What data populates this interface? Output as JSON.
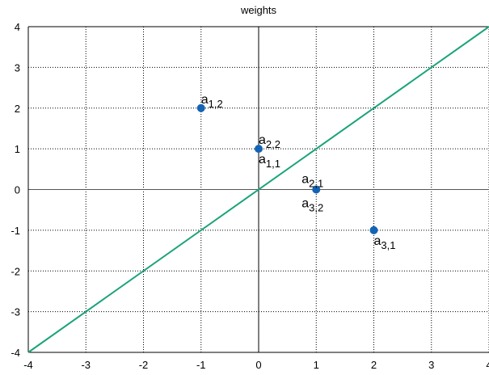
{
  "chart_data": {
    "type": "scatter",
    "title": "weights",
    "xlabel": "",
    "ylabel": "",
    "xlim": [
      -4,
      4
    ],
    "ylim": [
      -4,
      4
    ],
    "x_ticks": [
      -4,
      -3,
      -2,
      -1,
      0,
      1,
      2,
      3,
      4
    ],
    "y_ticks": [
      -4,
      -3,
      -2,
      -1,
      0,
      1,
      2,
      3,
      4
    ],
    "x_tick_labels": [
      "-4",
      "-3",
      "-2",
      "-1",
      "0",
      "1",
      "2",
      "3",
      "4"
    ],
    "y_tick_labels": [
      "-4",
      "-3",
      "-2",
      "-1",
      "0",
      "1",
      "2",
      "3",
      "4"
    ],
    "grid": true,
    "points": [
      {
        "x": -1,
        "y": 2
      },
      {
        "x": 0,
        "y": 1
      },
      {
        "x": 1,
        "y": 0
      },
      {
        "x": 2,
        "y": -1
      }
    ],
    "point_labels": [
      {
        "base": "a",
        "sub": "1,2",
        "x": -1,
        "y": 2,
        "placement": "above-right"
      },
      {
        "base": "a",
        "sub": "2,2",
        "x": 0,
        "y": 1,
        "placement": "above-right"
      },
      {
        "base": "a",
        "sub": "1,1",
        "x": 0,
        "y": 1,
        "placement": "below-right"
      },
      {
        "base": "a",
        "sub": "2,1",
        "x": 1,
        "y": 0,
        "placement": "above-left"
      },
      {
        "base": "a",
        "sub": "3,2",
        "x": 1,
        "y": 0,
        "placement": "below-left"
      },
      {
        "base": "a",
        "sub": "3,1",
        "x": 2,
        "y": -1,
        "placement": "below-right"
      }
    ],
    "line": {
      "x": [
        -4,
        4
      ],
      "y": [
        -4,
        4
      ]
    },
    "colors": {
      "point": "#1464b4",
      "line": "#1aa37a",
      "grid": "#000000",
      "axis": "#555555"
    }
  }
}
